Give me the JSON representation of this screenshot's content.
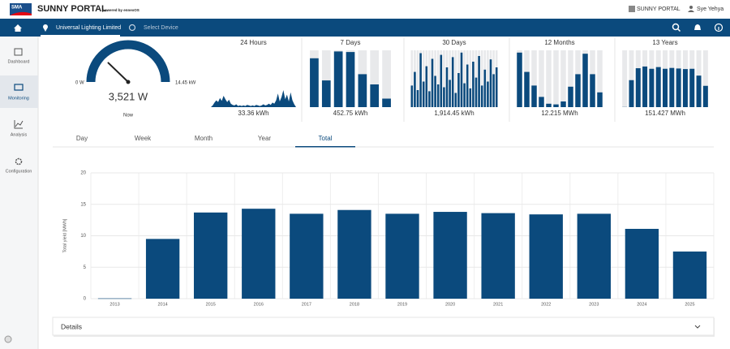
{
  "header": {
    "logo": "SMA",
    "title": "SUNNY PORTAL",
    "subtitle": "powered by ennexOS",
    "portal_menu": "SUNNY PORTAL",
    "user": "Sye Yehya"
  },
  "nav": {
    "plant": "Universal Lighting Limited",
    "device": "Select Device"
  },
  "sidebar": [
    "Dashboard",
    "Monitoring",
    "Analysis",
    "Configuration"
  ],
  "gauge": {
    "value": 3521,
    "value_label": "3,521 W",
    "min": {
      "value": 0,
      "label": "0 W"
    },
    "max": {
      "value": 14450,
      "label": "14.45 kW"
    },
    "caption": "Now"
  },
  "summaries": [
    {
      "type": "area",
      "title": "24 Hours",
      "ylim": [
        0,
        10
      ],
      "total": "33.36 kWh",
      "values": [
        0,
        0.3,
        0.8,
        1.2,
        0.9,
        1.6,
        1.1,
        2.0,
        1.4,
        0.9,
        1.3,
        0.6,
        0.4,
        0.3,
        0.5,
        0.2,
        0.3,
        0.2,
        0.3,
        0.2,
        0.4,
        0.3,
        0.2,
        0.3,
        0.2,
        0.4,
        0.3,
        0.2,
        0.3,
        0.5,
        0.3,
        0.4,
        0.6,
        0.4,
        0.8,
        0.6,
        1.2,
        2.4,
        1.0,
        1.8,
        3.0,
        1.4,
        2.2,
        1.0,
        2.6,
        1.2,
        0.5,
        0
      ]
    },
    {
      "type": "bar",
      "title": "7 Days",
      "ylim": [
        0,
        100
      ],
      "total": "452.75 kWh",
      "values": [
        86,
        47,
        98,
        97,
        58,
        40,
        15
      ]
    },
    {
      "type": "bar",
      "title": "30 Days",
      "ylim": [
        0,
        100
      ],
      "total": "1,914.45 kWh",
      "values": [
        38,
        62,
        30,
        95,
        45,
        72,
        28,
        85,
        55,
        40,
        92,
        35,
        70,
        48,
        88,
        25,
        60,
        96,
        42,
        75,
        33,
        80,
        52,
        90,
        38,
        66,
        45,
        84,
        58,
        70
      ]
    },
    {
      "type": "bar",
      "title": "12 Months",
      "ylim": [
        0,
        2.5
      ],
      "total": "12.215 MWh",
      "values": [
        2.4,
        1.55,
        0.95,
        0.45,
        0.15,
        0.12,
        0.25,
        0.9,
        1.45,
        2.35,
        1.45,
        0.65
      ]
    },
    {
      "type": "bar",
      "title": "13 Years",
      "ylim": [
        0,
        20
      ],
      "total": "151.427 MWh",
      "values": [
        0.05,
        9.5,
        13.7,
        14.3,
        13.5,
        14.1,
        13.5,
        13.8,
        13.6,
        13.4,
        13.5,
        11.1,
        7.5
      ]
    }
  ],
  "tabs": [
    "Day",
    "Week",
    "Month",
    "Year",
    "Total"
  ],
  "active_tab": 4,
  "chart_data": {
    "type": "bar",
    "y_label": "Total yield [MWh]",
    "categories": [
      "2013",
      "2014",
      "2015",
      "2016",
      "2017",
      "2018",
      "2019",
      "2020",
      "2021",
      "2022",
      "2023",
      "2024",
      "2025"
    ],
    "values": [
      0.05,
      9.5,
      13.7,
      14.3,
      13.5,
      14.1,
      13.5,
      13.8,
      13.6,
      13.4,
      13.5,
      11.1,
      7.5
    ],
    "color": "#0b4a7d",
    "ylim": [
      0,
      20
    ],
    "yticks": [
      0,
      5,
      10,
      15,
      20
    ],
    "grid": true
  },
  "details": "Details"
}
